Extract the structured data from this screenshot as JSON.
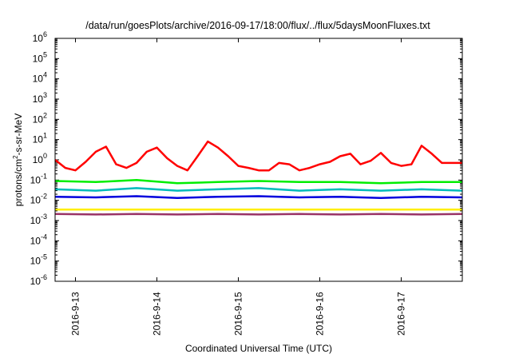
{
  "chart_data": {
    "type": "line",
    "title": "/data/run/goesPlots/archive/2016-09-17/18:00/flux/../flux/5daysMoonFluxes.txt",
    "xlabel": "Coordinated Universal Time (UTC)",
    "ylabel": {
      "base": "protons/cm",
      "sup": "2",
      "rest": "-s-sr-MeV"
    },
    "y_scale": "log",
    "ylim": [
      "1e-6",
      "1e6"
    ],
    "y_ticks": [
      {
        "base": "10",
        "exp": "-6"
      },
      {
        "base": "10",
        "exp": "-5"
      },
      {
        "base": "10",
        "exp": "-4"
      },
      {
        "base": "10",
        "exp": "-3"
      },
      {
        "base": "10",
        "exp": "-2"
      },
      {
        "base": "10",
        "exp": "-1"
      },
      {
        "base": "10",
        "exp": "0"
      },
      {
        "base": "10",
        "exp": "1"
      },
      {
        "base": "10",
        "exp": "2"
      },
      {
        "base": "10",
        "exp": "3"
      },
      {
        "base": "10",
        "exp": "4"
      },
      {
        "base": "10",
        "exp": "5"
      },
      {
        "base": "10",
        "exp": "6"
      }
    ],
    "xlim": [
      "2016-09-12 18:00",
      "2016-09-17 18:00"
    ],
    "x_ticks": [
      "2016-9-13",
      "2016-9-14",
      "2016-9-15",
      "2016-9-16",
      "2016-9-17"
    ],
    "grid": false,
    "series": [
      {
        "color": "#ff0000",
        "x": [
          "2016-09-12 18:00",
          "2016-09-12 21:00",
          "2016-09-13 00:00",
          "2016-09-13 03:00",
          "2016-09-13 06:00",
          "2016-09-13 09:00",
          "2016-09-13 12:00",
          "2016-09-13 15:00",
          "2016-09-13 18:00",
          "2016-09-13 21:00",
          "2016-09-14 00:00",
          "2016-09-14 03:00",
          "2016-09-14 06:00",
          "2016-09-14 09:00",
          "2016-09-14 12:00",
          "2016-09-14 15:00",
          "2016-09-14 18:00",
          "2016-09-14 21:00",
          "2016-09-15 00:00",
          "2016-09-15 03:00",
          "2016-09-15 06:00",
          "2016-09-15 09:00",
          "2016-09-15 12:00",
          "2016-09-15 15:00",
          "2016-09-15 18:00",
          "2016-09-15 21:00",
          "2016-09-16 00:00",
          "2016-09-16 03:00",
          "2016-09-16 06:00",
          "2016-09-16 09:00",
          "2016-09-16 12:00",
          "2016-09-16 15:00",
          "2016-09-16 18:00",
          "2016-09-16 21:00",
          "2016-09-17 00:00",
          "2016-09-17 03:00",
          "2016-09-17 06:00",
          "2016-09-17 09:00",
          "2016-09-17 12:00",
          "2016-09-17 15:00",
          "2016-09-17 18:00"
        ],
        "y": [
          1.0,
          0.4,
          0.3,
          0.8,
          2.5,
          4.5,
          0.6,
          0.4,
          0.7,
          2.5,
          4.0,
          1.2,
          0.5,
          0.3,
          1.5,
          8.0,
          4.0,
          1.5,
          0.5,
          0.4,
          0.3,
          0.3,
          0.7,
          0.6,
          0.3,
          0.4,
          0.6,
          0.8,
          1.5,
          2.0,
          0.6,
          0.9,
          2.2,
          0.7,
          0.5,
          0.6,
          5.0,
          2.0,
          0.7,
          0.7,
          0.7
        ]
      },
      {
        "color": "#00ee00",
        "x": [
          "2016-09-12 18:00",
          "2016-09-13 06:00",
          "2016-09-13 18:00",
          "2016-09-14 06:00",
          "2016-09-14 18:00",
          "2016-09-15 06:00",
          "2016-09-15 18:00",
          "2016-09-16 06:00",
          "2016-09-16 18:00",
          "2016-09-17 06:00",
          "2016-09-17 18:00"
        ],
        "y": [
          0.09,
          0.08,
          0.1,
          0.07,
          0.08,
          0.09,
          0.08,
          0.08,
          0.07,
          0.08,
          0.08
        ]
      },
      {
        "color": "#00bbbb",
        "x": [
          "2016-09-12 18:00",
          "2016-09-13 06:00",
          "2016-09-13 18:00",
          "2016-09-14 06:00",
          "2016-09-14 18:00",
          "2016-09-15 06:00",
          "2016-09-15 18:00",
          "2016-09-16 06:00",
          "2016-09-16 18:00",
          "2016-09-17 06:00",
          "2016-09-17 18:00"
        ],
        "y": [
          0.035,
          0.03,
          0.04,
          0.03,
          0.035,
          0.04,
          0.03,
          0.035,
          0.03,
          0.035,
          0.03
        ]
      },
      {
        "color": "#0000dd",
        "x": [
          "2016-09-12 18:00",
          "2016-09-13 06:00",
          "2016-09-13 18:00",
          "2016-09-14 06:00",
          "2016-09-14 18:00",
          "2016-09-15 06:00",
          "2016-09-15 18:00",
          "2016-09-16 06:00",
          "2016-09-16 18:00",
          "2016-09-17 06:00",
          "2016-09-17 18:00"
        ],
        "y": [
          0.015,
          0.014,
          0.016,
          0.013,
          0.015,
          0.016,
          0.014,
          0.015,
          0.013,
          0.015,
          0.014
        ]
      },
      {
        "color": "#ffee00",
        "x": [
          "2016-09-12 18:00",
          "2016-09-17 18:00"
        ],
        "y": [
          0.0035,
          0.0035
        ]
      },
      {
        "color": "#993366",
        "x": [
          "2016-09-12 18:00",
          "2016-09-13 06:00",
          "2016-09-13 18:00",
          "2016-09-14 06:00",
          "2016-09-14 18:00",
          "2016-09-15 06:00",
          "2016-09-15 18:00",
          "2016-09-16 06:00",
          "2016-09-16 18:00",
          "2016-09-17 06:00",
          "2016-09-17 18:00"
        ],
        "y": [
          0.0021,
          0.002,
          0.0021,
          0.002,
          0.0021,
          0.002,
          0.0021,
          0.002,
          0.0021,
          0.002,
          0.0021
        ]
      }
    ]
  }
}
